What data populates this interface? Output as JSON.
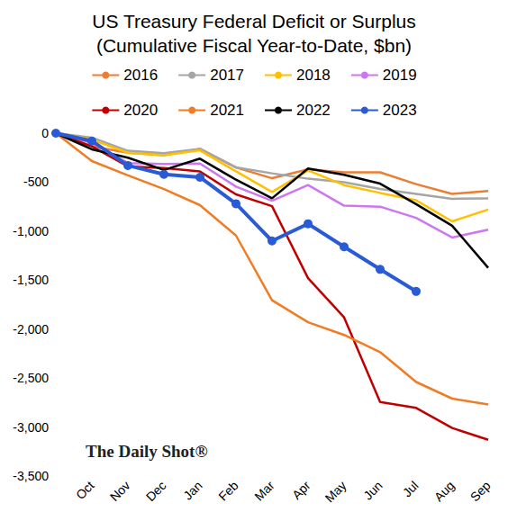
{
  "chart_data": {
    "type": "line",
    "title": "US Treasury Federal Deficit or Surplus",
    "subtitle": "(Cumulative Fiscal Year-to-Date, $bn)",
    "annotation": "The Daily Shot®",
    "categories": [
      null,
      "Oct",
      "Nov",
      "Dec",
      "Jan",
      "Feb",
      "Mar",
      "Apr",
      "May",
      "Jun",
      "Jul",
      "Aug",
      "Sep"
    ],
    "series": [
      {
        "name": "2016",
        "color": "#ed7d31",
        "marker": "none",
        "values": [
          0,
          -135,
          -200,
          -225,
          -160,
          -350,
          -460,
          -370,
          -400,
          -400,
          -520,
          -620,
          -590
        ]
      },
      {
        "name": "2017",
        "color": "#a5a5a5",
        "marker": "none",
        "values": [
          0,
          -45,
          -180,
          -205,
          -160,
          -350,
          -410,
          -465,
          -500,
          -570,
          -620,
          -670,
          -665
        ]
      },
      {
        "name": "2018",
        "color": "#ffc000",
        "marker": "none",
        "values": [
          0,
          -65,
          -200,
          -225,
          -175,
          -390,
          -600,
          -380,
          -530,
          -610,
          -685,
          -900,
          -780
        ]
      },
      {
        "name": "2019",
        "color": "#cc77f0",
        "marker": "none",
        "values": [
          0,
          -100,
          -305,
          -315,
          -310,
          -545,
          -690,
          -530,
          -740,
          -750,
          -865,
          -1065,
          -985
        ]
      },
      {
        "name": "2020",
        "color": "#c00000",
        "marker": "none",
        "values": [
          0,
          -135,
          -340,
          -355,
          -390,
          -625,
          -745,
          -1480,
          -1880,
          -2745,
          -2805,
          -3010,
          -3130
        ]
      },
      {
        "name": "2021",
        "color": "#f07c24",
        "marker": "none",
        "values": [
          0,
          -285,
          -430,
          -570,
          -735,
          -1045,
          -1705,
          -1930,
          -2060,
          -2235,
          -2540,
          -2710,
          -2770
        ]
      },
      {
        "name": "2022",
        "color": "#000000",
        "marker": "none",
        "values": [
          0,
          -165,
          -250,
          -375,
          -260,
          -475,
          -665,
          -360,
          -425,
          -515,
          -725,
          -945,
          -1375
        ]
      },
      {
        "name": "2023",
        "color": "#2a5bd7",
        "marker": "circle",
        "values": [
          0,
          -80,
          -330,
          -420,
          -450,
          -720,
          -1100,
          -925,
          -1160,
          -1390,
          -1615,
          null,
          null
        ]
      }
    ],
    "ylim": [
      -3500,
      0
    ],
    "yticks": [
      {
        "value": -3500,
        "label": "-3,500"
      },
      {
        "value": -3000,
        "label": "-3,000"
      },
      {
        "value": -2500,
        "label": "-2,500"
      },
      {
        "value": -2000,
        "label": "-2,000"
      },
      {
        "value": -1500,
        "label": "-1,500"
      },
      {
        "value": -1000,
        "label": "-1,000"
      },
      -500,
      0
    ],
    "grid": false,
    "legend": "top"
  }
}
